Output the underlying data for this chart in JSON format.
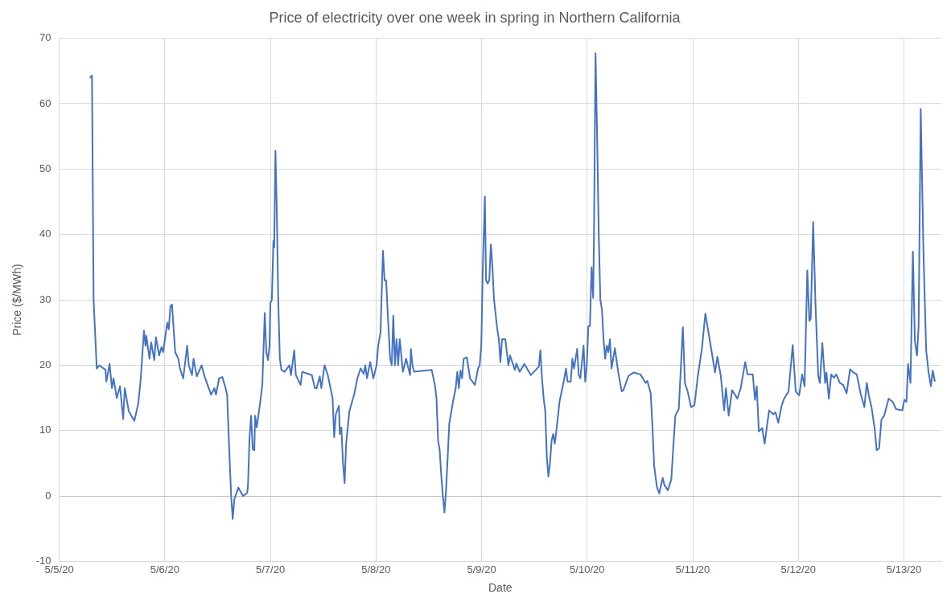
{
  "chart_data": {
    "type": "line",
    "title": "Price of electricity over one week in spring in Northern California",
    "xlabel": "Date",
    "ylabel": "Price ($/MWh)",
    "x": [
      "--05-05T07:05",
      "--05-05T07:27",
      "--05-05T07:49",
      "--05-05T08:32",
      "--05-05T09:05",
      "--05-05T10:32",
      "--05-05T10:43",
      "--05-05T11:27",
      "--05-05T11:59",
      "--05-05T12:21",
      "--05-05T13:05",
      "--05-05T13:49",
      "--05-05T14:32",
      "--05-05T14:54",
      "--05-05T15:48",
      "--05-05T17:05",
      "--05-05T17:59",
      "--05-05T18:32",
      "--05-05T19:16",
      "--05-05T19:37",
      "--05-05T19:48",
      "--05-05T20:32",
      "--05-05T20:54",
      "--05-05T21:37",
      "--05-05T21:59",
      "--05-05T22:43",
      "--05-05T23:15",
      "--05-05T23:37",
      "--05-06T00:33",
      "--05-06T00:54",
      "--05-06T01:16",
      "--05-06T01:38",
      "--05-06T02:22",
      "--05-06T03:05",
      "--05-06T03:27",
      "--05-06T04:11",
      "--05-06T05:05",
      "--05-06T05:27",
      "--05-06T06:11",
      "--05-06T06:32",
      "--05-06T07:16",
      "--05-06T08:22",
      "--05-06T09:05",
      "--05-06T10:32",
      "--05-06T11:16",
      "--05-06T11:38",
      "--05-06T12:21",
      "--05-06T13:05",
      "--05-06T13:49",
      "--05-06T14:10",
      "--05-06T14:32",
      "--05-06T15:05",
      "--05-06T15:26",
      "--05-06T15:48",
      "--05-06T16:43",
      "--05-06T17:48",
      "--05-06T18:43",
      "--05-06T18:54",
      "--05-06T19:16",
      "--05-06T19:37",
      "--05-06T19:59",
      "--05-06T20:21",
      "--05-06T20:32",
      "--05-06T20:54",
      "--05-06T21:37",
      "--05-06T22:10",
      "--05-06T22:43",
      "--05-06T23:05",
      "--05-06T23:27",
      "--05-06T23:48",
      "--05-07T00:00",
      "--05-07T00:20",
      "--05-07T00:41",
      "--05-07T00:52",
      "--05-07T01:09",
      "--05-07T01:25",
      "--05-07T01:47",
      "--05-07T02:09",
      "--05-07T02:30",
      "--05-07T03:14",
      "--05-07T04:19",
      "--05-07T04:41",
      "--05-07T05:25",
      "--05-07T05:47",
      "--05-07T06:52",
      "--05-07T07:14",
      "--05-07T09:25",
      "--05-07T10:08",
      "--05-07T10:30",
      "--05-07T11:14",
      "--05-07T11:35",
      "--05-07T12:19",
      "--05-07T13:03",
      "--05-07T14:08",
      "--05-07T14:30",
      "--05-07T14:52",
      "--05-07T15:35",
      "--05-07T15:46",
      "--05-07T16:08",
      "--05-07T16:30",
      "--05-07T16:52",
      "--05-07T17:13",
      "--05-07T17:57",
      "--05-07T19:02",
      "--05-07T19:46",
      "--05-07T20:30",
      "--05-07T21:13",
      "--05-07T21:35",
      "--05-07T21:57",
      "--05-07T22:41",
      "--05-07T23:24",
      "--05-08T00:08",
      "--05-08T00:30",
      "--05-08T01:02",
      "--05-08T01:35",
      "--05-08T01:57",
      "--05-08T02:18",
      "--05-08T02:40",
      "--05-08T03:13",
      "--05-08T03:35",
      "--05-08T03:56",
      "--05-08T04:18",
      "--05-08T04:40",
      "--05-08T05:02",
      "--05-08T05:24",
      "--05-08T06:07",
      "--05-08T06:51",
      "--05-08T07:45",
      "--05-08T07:56",
      "--05-08T08:18",
      "--05-08T08:40",
      "--05-08T12:40",
      "--05-08T13:23",
      "--05-08T13:45",
      "--05-08T14:07",
      "--05-08T14:29",
      "--05-08T14:51",
      "--05-08T15:12",
      "--05-08T15:34",
      "--05-08T15:56",
      "--05-08T16:18",
      "--05-08T16:39",
      "--05-08T17:23",
      "--05-08T18:07",
      "--05-08T18:29",
      "--05-08T18:50",
      "--05-08T19:12",
      "--05-08T19:34",
      "--05-08T19:56",
      "--05-08T20:39",
      "--05-08T21:23",
      "--05-08T22:29",
      "--05-08T23:12",
      "--05-08T23:34",
      "--05-08T23:56",
      "--05-09T00:17",
      "--05-09T00:45",
      "--05-09T01:01",
      "--05-09T01:23",
      "--05-09T01:45",
      "--05-09T02:07",
      "--05-09T02:28",
      "--05-09T02:50",
      "--05-09T03:34",
      "--05-09T03:55",
      "--05-09T04:17",
      "--05-09T04:39",
      "--05-09T05:23",
      "--05-09T06:06",
      "--05-09T06:28",
      "--05-09T07:34",
      "--05-09T07:55",
      "--05-09T08:39",
      "--05-09T09:44",
      "--05-09T11:12",
      "--05-09T13:01",
      "--05-09T13:22",
      "--05-09T13:44",
      "--05-09T14:06",
      "--05-09T14:28",
      "--05-09T14:50",
      "--05-09T15:11",
      "--05-09T15:33",
      "--05-09T15:55",
      "--05-09T16:17",
      "--05-09T16:38",
      "--05-09T17:00",
      "--05-09T17:44",
      "--05-09T18:49",
      "--05-09T19:11",
      "--05-09T19:33",
      "--05-09T20:16",
      "--05-09T20:38",
      "--05-09T21:00",
      "--05-09T21:44",
      "--05-09T22:05",
      "--05-09T22:27",
      "--05-09T23:11",
      "--05-09T23:33",
      "--05-09T23:55",
      "--05-10T00:16",
      "--05-10T00:38",
      "--05-10T01:00",
      "--05-10T01:22",
      "--05-10T01:33",
      "--05-10T01:54",
      "--05-10T02:16",
      "--05-10T02:38",
      "--05-10T03:00",
      "--05-10T03:22",
      "--05-10T03:43",
      "--05-10T04:05",
      "--05-10T04:27",
      "--05-10T04:49",
      "--05-10T05:11",
      "--05-10T05:32",
      "--05-10T06:18",
      "--05-10T07:04",
      "--05-10T07:51",
      "--05-10T08:14",
      "--05-10T09:25",
      "--05-10T10:34",
      "--05-10T12:07",
      "--05-10T13:17",
      "--05-10T13:41",
      "--05-10T14:27",
      "--05-10T14:51",
      "--05-10T15:14",
      "--05-10T15:51",
      "--05-10T16:23",
      "--05-10T17:10",
      "--05-10T17:33",
      "--05-10T18:20",
      "--05-10T19:07",
      "--05-10T19:30",
      "--05-10T20:02",
      "--05-10T20:49",
      "--05-10T21:45",
      "--05-10T22:13",
      "--05-10T22:50",
      "--05-10T23:37",
      "--05-11T00:23",
      "--05-11T01:10",
      "--05-11T02:05",
      "--05-11T02:52",
      "--05-11T03:39",
      "--05-11T04:26",
      "--05-11T05:03",
      "--05-11T05:36",
      "--05-11T06:22",
      "--05-11T07:08",
      "--05-11T07:32",
      "--05-11T08:10",
      "--05-11T08:56",
      "--05-11T09:52",
      "--05-11T10:07",
      "--05-11T10:54",
      "--05-11T11:55",
      "--05-11T12:27",
      "--05-11T13:38",
      "--05-11T14:09",
      "--05-11T14:33",
      "--05-11T15:01",
      "--05-11T15:47",
      "--05-11T16:20",
      "--05-11T17:21",
      "--05-11T18:17",
      "--05-11T18:49",
      "--05-11T19:26",
      "--05-11T20:13",
      "--05-11T20:46",
      "--05-11T21:46",
      "--05-11T22:43",
      "--05-11T23:24",
      "--05-12T00:11",
      "--05-12T00:52",
      "--05-12T01:25",
      "--05-12T02:02",
      "--05-12T02:30",
      "--05-12T02:49",
      "--05-12T03:22",
      "--05-12T03:55",
      "--05-12T04:31",
      "--05-12T04:54",
      "--05-12T05:27",
      "--05-12T06:05",
      "--05-12T06:23",
      "--05-12T06:56",
      "--05-12T07:28",
      "--05-12T08:06",
      "--05-12T08:38",
      "--05-12T09:25",
      "--05-12T10:11",
      "--05-12T10:58",
      "--05-12T11:45",
      "--05-12T12:31",
      "--05-12T13:17",
      "--05-12T14:09",
      "--05-12T15:00",
      "--05-12T15:33",
      "--05-12T16:01",
      "--05-12T16:38",
      "--05-12T17:20",
      "--05-12T17:48",
      "--05-12T18:21",
      "--05-12T18:53",
      "--05-12T19:31",
      "--05-12T20:31",
      "--05-12T21:27",
      "--05-12T22:13",
      "--05-12T23:37",
      "--05-13T00:05",
      "--05-13T00:34",
      "--05-13T00:56",
      "--05-13T01:29",
      "--05-13T02:02",
      "--05-13T02:29",
      "--05-13T02:58",
      "--05-13T03:20",
      "--05-13T03:49",
      "--05-13T04:26",
      "--05-13T05:03",
      "--05-13T05:36",
      "--05-13T06:08",
      "--05-13T06:32",
      "--05-13T07:00"
    ],
    "series": [
      {
        "color": "#4472c4",
        "values": [
          64,
          64.3,
          30,
          19.5,
          20,
          19.3,
          17.5,
          20.2,
          16.5,
          18,
          15,
          16.8,
          11.8,
          16.5,
          13,
          11.5,
          14.2,
          18,
          25.3,
          23,
          24.5,
          21,
          23.5,
          20.8,
          24.3,
          21.5,
          22.8,
          22,
          26.5,
          25.5,
          29,
          29.3,
          22,
          21,
          19.5,
          18,
          23,
          20,
          18.5,
          21,
          18.3,
          20,
          18.2,
          15.5,
          16.5,
          15.5,
          18,
          18.2,
          16.5,
          15.5,
          9,
          0,
          -3.5,
          -0.5,
          1.3,
          0,
          0.5,
          1.5,
          9,
          12.3,
          7.2,
          7,
          12.3,
          10.5,
          14,
          17,
          28,
          22,
          20.8,
          23,
          29.5,
          30,
          39,
          38,
          52.8,
          45,
          30,
          21,
          19.3,
          19,
          20,
          18.5,
          22.3,
          18.5,
          17,
          19,
          18.5,
          16.5,
          16.5,
          18.3,
          16.5,
          20,
          18.5,
          15,
          9,
          12.5,
          13.8,
          9.5,
          10.5,
          5,
          2,
          8,
          13,
          15.5,
          18,
          19.5,
          18.7,
          20,
          18,
          20.5,
          18,
          20,
          23,
          25,
          37.5,
          33,
          33,
          28,
          21,
          20,
          27.6,
          20,
          24,
          20,
          24,
          19,
          21,
          18.5,
          22.5,
          20,
          19,
          19.3,
          17,
          15,
          8.5,
          7,
          3,
          0,
          -2.5,
          1,
          6,
          11,
          14,
          16.5,
          19,
          16.5,
          19.2,
          18,
          21,
          21.2,
          18,
          17,
          19.5,
          20,
          23,
          35,
          45.8,
          33,
          32.5,
          33,
          38.5,
          35,
          30,
          25.5,
          24,
          20.5,
          24,
          24,
          20,
          21.5,
          19.3,
          20.3,
          19,
          20.2,
          18.5,
          19.8,
          22.3,
          18,
          15,
          13,
          6,
          3,
          5,
          8.5,
          9.5,
          8,
          10,
          14.5,
          18,
          19.5,
          17.5,
          17.5,
          21,
          19.5,
          22.5,
          18.5,
          18,
          23,
          17.5,
          20,
          26,
          26,
          35,
          30.3,
          40,
          67.7,
          55,
          40,
          30,
          28.5,
          24,
          21,
          23,
          22,
          24,
          19.5,
          22.6,
          18.9,
          16,
          16.2,
          18.4,
          18.9,
          18.6,
          17.3,
          17.6,
          15.7,
          10.4,
          4.6,
          1.4,
          0.4,
          2.8,
          1.7,
          0.9,
          2.5,
          6.7,
          12.3,
          13.3,
          25.8,
          17.3,
          16,
          13.6,
          13.9,
          18.4,
          22.6,
          27.9,
          24.7,
          21.5,
          18.9,
          21.3,
          18.4,
          13.1,
          16.5,
          12.3,
          16.2,
          15.2,
          14.9,
          16.5,
          20.5,
          18.6,
          18.6,
          14.7,
          16.8,
          9.9,
          10.4,
          8,
          13.1,
          12.5,
          12.8,
          11.2,
          13.9,
          14.9,
          16,
          23.1,
          16,
          15.4,
          18.6,
          16.8,
          34.5,
          26.8,
          27.1,
          41.9,
          28.9,
          18.4,
          17.3,
          23.4,
          17.3,
          18.9,
          14.9,
          18.6,
          18.1,
          18.6,
          17.3,
          17,
          15.7,
          19.4,
          18.9,
          18.6,
          15.7,
          13.6,
          17.3,
          15.4,
          13.6,
          10.4,
          7,
          7.3,
          11.7,
          12.3,
          14.9,
          14.4,
          13.3,
          13.1,
          14.7,
          14.4,
          20.2,
          17.3,
          37.4,
          23.7,
          21.5,
          26,
          59.2,
          37.4,
          22.3,
          18.9,
          16.8,
          19.2,
          17.6
        ]
      }
    ],
    "xlim": [
      "--05-05",
      "--05-13T08:30"
    ],
    "xticks": [
      {
        "value": "--05-05",
        "label": "5/5/20"
      },
      {
        "value": "--05-06",
        "label": "5/6/20"
      },
      {
        "value": "--05-07",
        "label": "5/7/20"
      },
      {
        "value": "--05-08",
        "label": "5/8/20"
      },
      {
        "value": "--05-09",
        "label": "5/9/20"
      },
      {
        "value": "--05-10",
        "label": "5/10/20"
      },
      {
        "value": "--05-11",
        "label": "5/11/20"
      },
      {
        "value": "--05-12",
        "label": "5/12/20"
      },
      {
        "value": "--05-13",
        "label": "5/13/20"
      }
    ],
    "ylim": [
      -10,
      70
    ],
    "yticks": [
      -10,
      0,
      10,
      20,
      30,
      40,
      50,
      60,
      70
    ],
    "grid": true
  }
}
